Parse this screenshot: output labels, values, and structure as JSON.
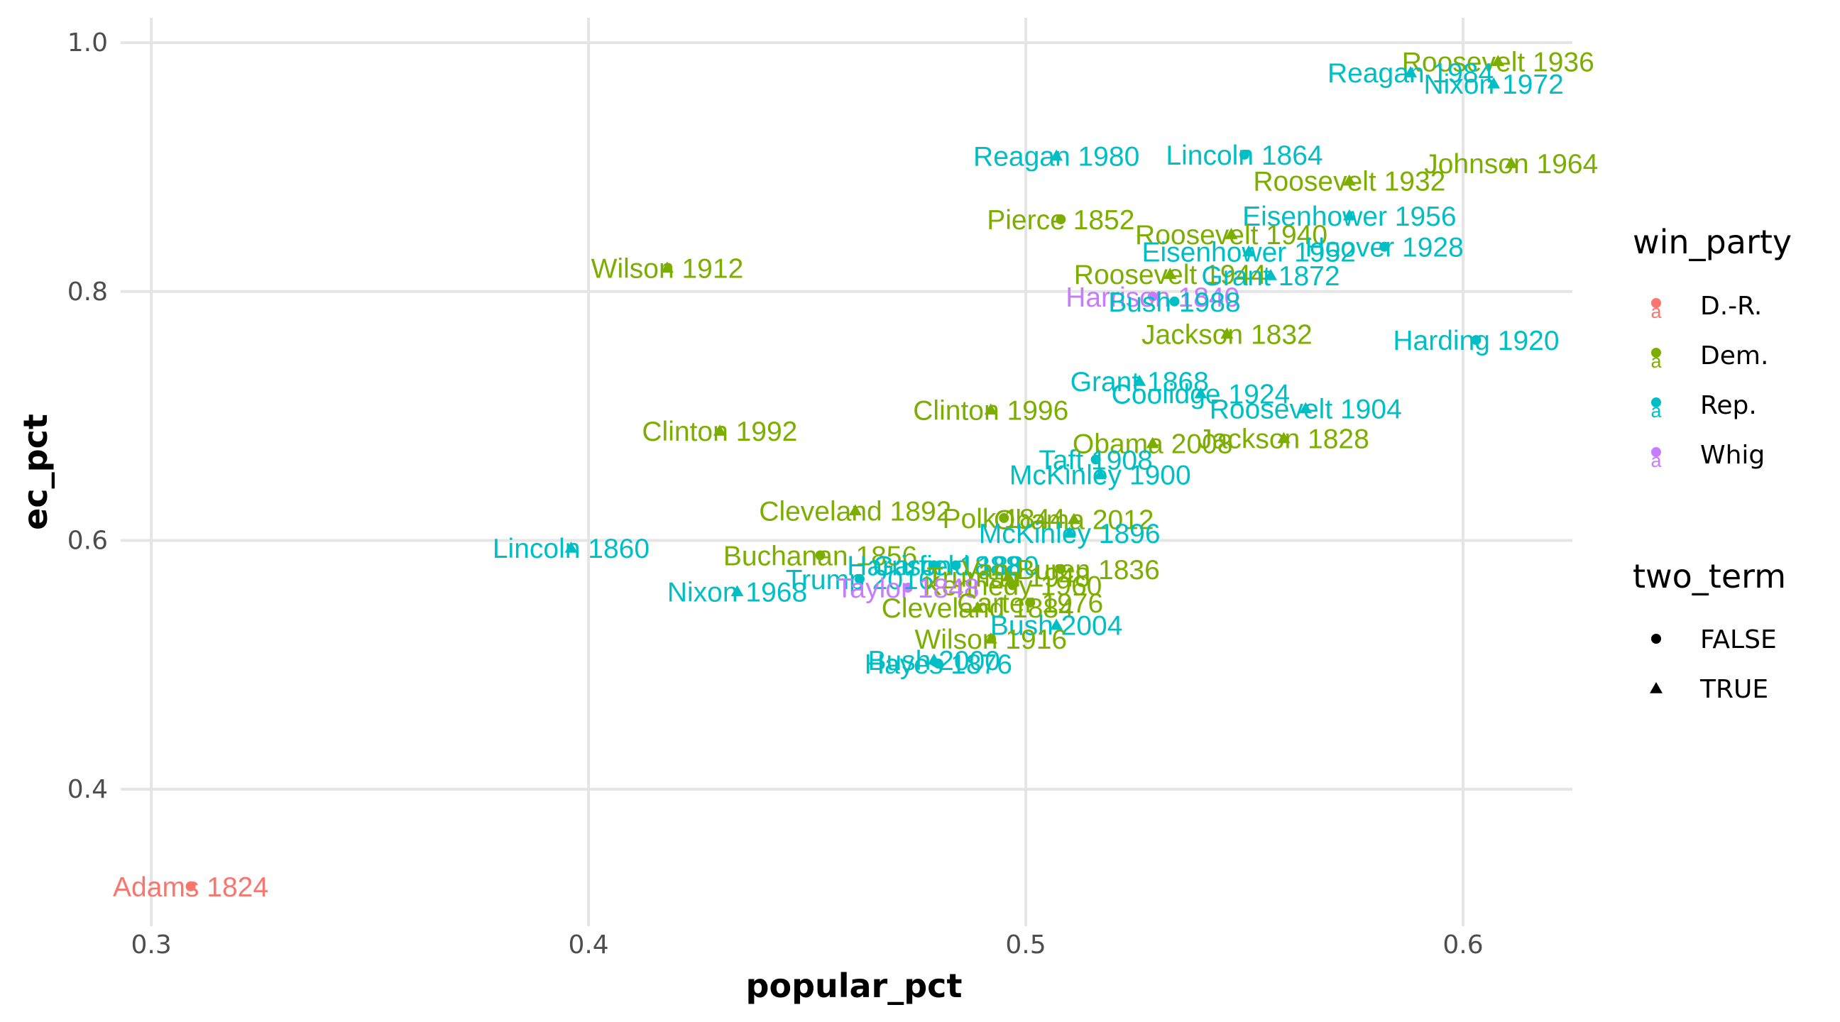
{
  "chart_data": {
    "type": "scatter",
    "xlabel": "popular_pct",
    "ylabel": "ec_pct",
    "xlim": [
      0.293,
      0.625
    ],
    "ylim": [
      0.29,
      1.02
    ],
    "x_ticks": [
      0.3,
      0.4,
      0.5,
      0.6
    ],
    "x_tick_labels": [
      "0.3",
      "0.4",
      "0.5",
      "0.6"
    ],
    "y_ticks": [
      0.4,
      0.6,
      0.8,
      1.0
    ],
    "y_tick_labels": [
      "0.4",
      "0.6",
      "0.8",
      "1.0"
    ],
    "grid": true,
    "legend_position": "right",
    "legends": {
      "color": {
        "title": "win_party",
        "items": [
          {
            "label": "D.-R.",
            "color": "#F8766D"
          },
          {
            "label": "Dem.",
            "color": "#7CAE00"
          },
          {
            "label": "Rep.",
            "color": "#00BFC4"
          },
          {
            "label": "Whig",
            "color": "#C77CFF"
          }
        ]
      },
      "shape": {
        "title": "two_term",
        "items": [
          {
            "label": "FALSE",
            "shape": "circle"
          },
          {
            "label": "TRUE",
            "shape": "triangle"
          }
        ]
      }
    },
    "points": [
      {
        "label": "Adams 1824",
        "x": 0.309,
        "y": 0.322,
        "party": "D.-R.",
        "two_term": false
      },
      {
        "label": "Roosevelt 1936",
        "x": 0.608,
        "y": 0.985,
        "party": "Dem.",
        "two_term": true
      },
      {
        "label": "Reagan 1984",
        "x": 0.588,
        "y": 0.976,
        "party": "Rep.",
        "two_term": true
      },
      {
        "label": "Nixon 1972",
        "x": 0.607,
        "y": 0.967,
        "party": "Rep.",
        "two_term": true
      },
      {
        "label": "Johnson 1964",
        "x": 0.611,
        "y": 0.903,
        "party": "Dem.",
        "two_term": true
      },
      {
        "label": "Reagan 1980",
        "x": 0.507,
        "y": 0.909,
        "party": "Rep.",
        "two_term": true
      },
      {
        "label": "Lincoln 1864",
        "x": 0.55,
        "y": 0.91,
        "party": "Rep.",
        "two_term": false
      },
      {
        "label": "Roosevelt 1932",
        "x": 0.574,
        "y": 0.889,
        "party": "Dem.",
        "two_term": true
      },
      {
        "label": "Pierce 1852",
        "x": 0.508,
        "y": 0.858,
        "party": "Dem.",
        "two_term": false
      },
      {
        "label": "Eisenhower 1956",
        "x": 0.574,
        "y": 0.861,
        "party": "Rep.",
        "two_term": true
      },
      {
        "label": "Roosevelt 1940",
        "x": 0.547,
        "y": 0.846,
        "party": "Dem.",
        "two_term": true
      },
      {
        "label": "Hoover 1928",
        "x": 0.582,
        "y": 0.836,
        "party": "Rep.",
        "two_term": false
      },
      {
        "label": "Eisenhower 1952",
        "x": 0.551,
        "y": 0.832,
        "party": "Rep.",
        "two_term": true
      },
      {
        "label": "Wilson 1912",
        "x": 0.418,
        "y": 0.819,
        "party": "Dem.",
        "two_term": true
      },
      {
        "label": "Roosevelt 1944",
        "x": 0.533,
        "y": 0.814,
        "party": "Dem.",
        "two_term": true
      },
      {
        "label": "Grant 1872",
        "x": 0.556,
        "y": 0.813,
        "party": "Rep.",
        "two_term": true
      },
      {
        "label": "Harrison 1840",
        "x": 0.529,
        "y": 0.796,
        "party": "Whig",
        "two_term": false
      },
      {
        "label": "Bush 1988",
        "x": 0.534,
        "y": 0.792,
        "party": "Rep.",
        "two_term": false
      },
      {
        "label": "Jackson 1832",
        "x": 0.546,
        "y": 0.766,
        "party": "Dem.",
        "two_term": true
      },
      {
        "label": "Harding 1920",
        "x": 0.603,
        "y": 0.761,
        "party": "Rep.",
        "two_term": false
      },
      {
        "label": "Grant 1868",
        "x": 0.526,
        "y": 0.728,
        "party": "Rep.",
        "two_term": true
      },
      {
        "label": "Coolidge 1924",
        "x": 0.54,
        "y": 0.718,
        "party": "Rep.",
        "two_term": true
      },
      {
        "label": "Roosevelt 1904",
        "x": 0.564,
        "y": 0.706,
        "party": "Rep.",
        "two_term": true
      },
      {
        "label": "Clinton 1996",
        "x": 0.492,
        "y": 0.705,
        "party": "Dem.",
        "two_term": true
      },
      {
        "label": "Clinton 1992",
        "x": 0.43,
        "y": 0.688,
        "party": "Dem.",
        "two_term": true
      },
      {
        "label": "Obama 2008",
        "x": 0.529,
        "y": 0.678,
        "party": "Dem.",
        "two_term": true
      },
      {
        "label": "Jackson 1828",
        "x": 0.559,
        "y": 0.682,
        "party": "Dem.",
        "two_term": true
      },
      {
        "label": "Taft 1908",
        "x": 0.516,
        "y": 0.665,
        "party": "Rep.",
        "two_term": false
      },
      {
        "label": "McKinley 1900",
        "x": 0.517,
        "y": 0.653,
        "party": "Rep.",
        "two_term": true
      },
      {
        "label": "Cleveland 1892",
        "x": 0.461,
        "y": 0.624,
        "party": "Dem.",
        "two_term": true
      },
      {
        "label": "Polk 1844",
        "x": 0.495,
        "y": 0.618,
        "party": "Dem.",
        "two_term": false
      },
      {
        "label": "Obama 2012",
        "x": 0.511,
        "y": 0.617,
        "party": "Dem.",
        "two_term": true
      },
      {
        "label": "McKinley 1896",
        "x": 0.51,
        "y": 0.606,
        "party": "Rep.",
        "two_term": true
      },
      {
        "label": "Lincoln 1860",
        "x": 0.396,
        "y": 0.594,
        "party": "Rep.",
        "two_term": true
      },
      {
        "label": "Buchanan 1856",
        "x": 0.453,
        "y": 0.588,
        "party": "Dem.",
        "two_term": false
      },
      {
        "label": "Harrison 1888",
        "x": 0.479,
        "y": 0.58,
        "party": "Rep.",
        "two_term": false
      },
      {
        "label": "Garfield 1880",
        "x": 0.484,
        "y": 0.58,
        "party": "Rep.",
        "two_term": false
      },
      {
        "label": "Van Buren 1836",
        "x": 0.508,
        "y": 0.577,
        "party": "Dem.",
        "two_term": false
      },
      {
        "label": "Truman 1948",
        "x": 0.496,
        "y": 0.571,
        "party": "Dem.",
        "two_term": true
      },
      {
        "label": "Trump 2016",
        "x": 0.462,
        "y": 0.569,
        "party": "Rep.",
        "two_term": false
      },
      {
        "label": "Kennedy 1960",
        "x": 0.497,
        "y": 0.564,
        "party": "Dem.",
        "two_term": false
      },
      {
        "label": "Taylor 1848",
        "x": 0.473,
        "y": 0.562,
        "party": "Whig",
        "two_term": false
      },
      {
        "label": "Nixon 1968",
        "x": 0.434,
        "y": 0.559,
        "party": "Rep.",
        "two_term": true
      },
      {
        "label": "Carter 1976",
        "x": 0.501,
        "y": 0.55,
        "party": "Dem.",
        "two_term": false
      },
      {
        "label": "Cleveland 1884",
        "x": 0.489,
        "y": 0.546,
        "party": "Dem.",
        "two_term": true
      },
      {
        "label": "Bush 2004",
        "x": 0.507,
        "y": 0.532,
        "party": "Rep.",
        "two_term": true
      },
      {
        "label": "Wilson 1916",
        "x": 0.492,
        "y": 0.521,
        "party": "Dem.",
        "two_term": true
      },
      {
        "label": "Bush 2000",
        "x": 0.479,
        "y": 0.504,
        "party": "Rep.",
        "two_term": true
      },
      {
        "label": "Hayes 1876",
        "x": 0.48,
        "y": 0.501,
        "party": "Rep.",
        "two_term": false
      }
    ]
  }
}
